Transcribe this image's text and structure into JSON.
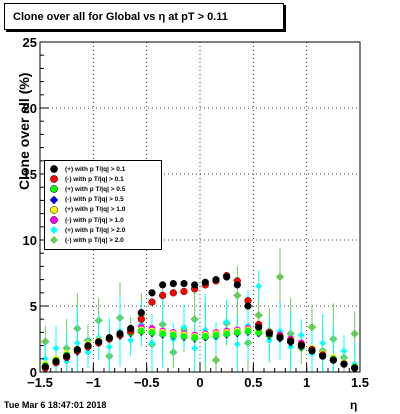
{
  "title": "Clone  over all for Global vs   η at pT > 0.11",
  "footer_timestamp": "Tue Mar  6 18:47:01 2018",
  "chart_data": {
    "type": "scatter",
    "xlabel": "η",
    "ylabel": "Clone  over all (%)",
    "xlim": [
      -1.5,
      1.5
    ],
    "ylim": [
      0,
      25
    ],
    "xticks": [
      "−1.5",
      "−1",
      "−0.5",
      "0",
      "0.5",
      "1",
      "1.5"
    ],
    "yticks": [
      "0",
      "5",
      "10",
      "15",
      "20",
      "25"
    ],
    "grid": true,
    "legend_position": "upper-left",
    "series": [
      {
        "name": "(+) with p T/|q| > 0.1",
        "color": "#000000",
        "x": [
          -1.45,
          -1.35,
          -1.25,
          -1.15,
          -1.05,
          -0.95,
          -0.85,
          -0.75,
          -0.65,
          -0.55,
          -0.45,
          -0.35,
          -0.25,
          -0.15,
          -0.05,
          0.05,
          0.15,
          0.25,
          0.35,
          0.45,
          0.55,
          0.65,
          0.75,
          0.85,
          0.95,
          1.05,
          1.15,
          1.25,
          1.35,
          1.45
        ],
        "y": [
          0.4,
          0.8,
          1.2,
          1.7,
          2.0,
          2.3,
          2.6,
          2.9,
          3.3,
          4.5,
          6.0,
          6.6,
          6.7,
          6.7,
          6.6,
          6.8,
          7.0,
          7.2,
          6.6,
          5.0,
          3.4,
          2.9,
          2.6,
          2.3,
          2.0,
          1.6,
          1.2,
          0.9,
          0.6,
          0.3
        ]
      },
      {
        "name": "(-) with p T/|q| > 0.1",
        "color": "#ff0000",
        "x": [
          -1.45,
          -1.35,
          -1.25,
          -1.15,
          -1.05,
          -0.95,
          -0.85,
          -0.75,
          -0.65,
          -0.55,
          -0.45,
          -0.35,
          -0.25,
          -0.15,
          -0.05,
          0.05,
          0.15,
          0.25,
          0.35,
          0.45,
          0.55,
          0.65,
          0.75,
          0.85,
          0.95,
          1.05,
          1.15,
          1.25,
          1.35,
          1.45
        ],
        "y": [
          0.3,
          0.7,
          1.1,
          1.6,
          1.9,
          2.2,
          2.5,
          2.8,
          3.1,
          4.0,
          5.3,
          5.8,
          6.0,
          6.1,
          6.3,
          6.6,
          6.9,
          7.3,
          6.9,
          5.4,
          3.6,
          3.0,
          2.7,
          2.4,
          2.1,
          1.7,
          1.3,
          0.9,
          0.6,
          0.3
        ]
      },
      {
        "name": "(+) with p T/|q| > 0.5",
        "color": "#00ff00",
        "x": [
          -1.45,
          -1.35,
          -1.25,
          -1.15,
          -1.05,
          -0.95,
          -0.85,
          -0.75,
          -0.65,
          -0.55,
          -0.45,
          -0.35,
          -0.25,
          -0.15,
          -0.05,
          0.05,
          0.15,
          0.25,
          0.35,
          0.45,
          0.55,
          0.65,
          0.75,
          0.85,
          0.95,
          1.05,
          1.15,
          1.25,
          1.35,
          1.45
        ],
        "y": [
          0.5,
          0.9,
          1.3,
          1.6,
          2.0,
          2.3,
          2.6,
          2.8,
          3.0,
          3.1,
          3.0,
          2.9,
          2.8,
          2.7,
          2.6,
          2.7,
          2.8,
          2.9,
          3.0,
          3.1,
          3.0,
          2.8,
          2.6,
          2.3,
          2.0,
          1.7,
          1.3,
          1.0,
          0.6,
          0.4
        ]
      },
      {
        "name": "(-) with p T/|q| > 0.5",
        "color": "#0000ff",
        "x": [
          -1.45,
          -1.35,
          -1.25,
          -1.15,
          -1.05,
          -0.95,
          -0.85,
          -0.75,
          -0.65,
          -0.55,
          -0.45,
          -0.35,
          -0.25,
          -0.15,
          -0.05,
          0.05,
          0.15,
          0.25,
          0.35,
          0.45,
          0.55,
          0.65,
          0.75,
          0.85,
          0.95,
          1.05,
          1.15,
          1.25,
          1.35,
          1.45
        ],
        "y": [
          0.4,
          0.8,
          1.2,
          1.5,
          1.9,
          2.2,
          2.5,
          2.7,
          2.9,
          3.0,
          2.9,
          2.8,
          2.7,
          2.6,
          2.5,
          2.6,
          2.7,
          2.8,
          2.9,
          3.0,
          2.9,
          2.7,
          2.5,
          2.2,
          1.9,
          1.6,
          1.2,
          0.9,
          0.6,
          0.3
        ]
      },
      {
        "name": "(+) with p T/|q| > 1.0",
        "color": "#ffff00",
        "x": [
          -1.45,
          -1.35,
          -1.25,
          -1.15,
          -1.05,
          -0.95,
          -0.85,
          -0.75,
          -0.65,
          -0.55,
          -0.45,
          -0.35,
          -0.25,
          -0.15,
          -0.05,
          0.05,
          0.15,
          0.25,
          0.35,
          0.45,
          0.55,
          0.65,
          0.75,
          0.85,
          0.95,
          1.05,
          1.15,
          1.25,
          1.35,
          1.45
        ],
        "y": [
          0.6,
          1.0,
          1.4,
          1.7,
          2.1,
          2.4,
          2.6,
          2.9,
          3.1,
          3.2,
          3.1,
          3.0,
          2.9,
          2.8,
          2.7,
          2.8,
          2.9,
          3.0,
          3.1,
          3.2,
          3.1,
          2.9,
          2.7,
          2.4,
          2.1,
          1.8,
          1.4,
          1.1,
          0.7,
          0.4
        ]
      },
      {
        "name": "(-) with p T/|q| > 1.0",
        "color": "#ff00ff",
        "x": [
          -1.45,
          -1.35,
          -1.25,
          -1.15,
          -1.05,
          -0.95,
          -0.85,
          -0.75,
          -0.65,
          -0.55,
          -0.45,
          -0.35,
          -0.25,
          -0.15,
          -0.05,
          0.05,
          0.15,
          0.25,
          0.35,
          0.45,
          0.55,
          0.65,
          0.75,
          0.85,
          0.95,
          1.05,
          1.15,
          1.25,
          1.35,
          1.45
        ],
        "y": [
          0.5,
          0.9,
          1.3,
          1.6,
          2.0,
          2.3,
          2.6,
          2.9,
          3.2,
          3.4,
          3.3,
          3.1,
          3.0,
          2.9,
          2.8,
          2.9,
          3.0,
          3.1,
          3.2,
          3.3,
          3.2,
          3.0,
          2.8,
          2.5,
          2.2,
          1.8,
          1.4,
          1.0,
          0.7,
          0.4
        ]
      },
      {
        "name": "(+) with p T/|q| > 2.0",
        "color": "#00ffff",
        "x": [
          -1.45,
          -1.35,
          -1.25,
          -1.15,
          -1.05,
          -0.95,
          -0.85,
          -0.75,
          -0.65,
          -0.55,
          -0.45,
          -0.35,
          -0.25,
          -0.15,
          -0.05,
          0.05,
          0.15,
          0.25,
          0.35,
          0.45,
          0.55,
          0.65,
          0.75,
          0.85,
          0.95,
          1.05,
          1.15,
          1.25,
          1.35,
          1.45
        ],
        "y": [
          1.0,
          1.8,
          0.8,
          2.2,
          1.5,
          2.6,
          1.9,
          3.1,
          2.4,
          3.6,
          2.2,
          3.0,
          2.5,
          3.4,
          1.8,
          3.2,
          2.6,
          3.8,
          2.1,
          3.5,
          6.5,
          2.4,
          3.1,
          1.9,
          2.8,
          1.4,
          2.2,
          0.9,
          1.6,
          0.6
        ]
      },
      {
        "name": "(-) with p T/|q| > 2.0",
        "color": "#66cc55",
        "x": [
          -1.45,
          -1.35,
          -1.25,
          -1.15,
          -1.05,
          -0.95,
          -0.85,
          -0.75,
          -0.65,
          -0.55,
          -0.45,
          -0.35,
          -0.25,
          -0.15,
          -0.05,
          0.05,
          0.15,
          0.25,
          0.35,
          0.45,
          0.55,
          0.65,
          0.75,
          0.85,
          0.95,
          1.05,
          1.15,
          1.25,
          1.35,
          1.45
        ],
        "y": [
          2.3,
          0.9,
          1.8,
          3.3,
          2.4,
          3.9,
          1.2,
          4.1,
          3.0,
          4.3,
          2.1,
          3.6,
          1.5,
          3.2,
          4.0,
          2.6,
          0.9,
          3.7,
          5.8,
          2.2,
          4.3,
          3.1,
          7.2,
          2.9,
          1.8,
          3.4,
          1.6,
          2.5,
          1.1,
          2.9
        ]
      }
    ]
  }
}
